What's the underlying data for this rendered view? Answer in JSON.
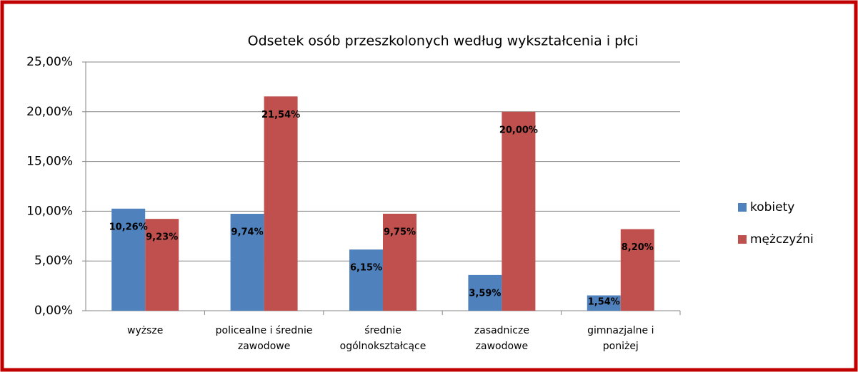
{
  "chart_data": {
    "type": "bar",
    "title": "Odsetek osób przeszkolonych według wykształcenia i płci",
    "categories": [
      "wyższe",
      "policealne i średnie\nzawodowe",
      "średnie\nogólnokształcące",
      "zasadnicze\nzawodowe",
      "gimnazjalne i\nponiżej"
    ],
    "series": [
      {
        "name": "kobiety",
        "color": "#4f81bd",
        "values": [
          10.26,
          9.74,
          6.15,
          3.59,
          1.54
        ],
        "value_labels": [
          "10,26%",
          "9,74%",
          "6,15%",
          "3,59%",
          "1,54%"
        ]
      },
      {
        "name": "mężczyźni",
        "color": "#c0504d",
        "values": [
          9.23,
          21.54,
          9.75,
          20.0,
          8.2
        ],
        "value_labels": [
          "9,23%",
          "21,54%",
          "9,75%",
          "20,00%",
          "8,20%"
        ]
      }
    ],
    "ylim": [
      0,
      25
    ],
    "yticks": [
      {
        "value": 0,
        "label": "0,00%"
      },
      {
        "value": 5,
        "label": "5,00%"
      },
      {
        "value": 10,
        "label": "10,00%"
      },
      {
        "value": 15,
        "label": "15,00%"
      },
      {
        "value": 20,
        "label": "20,00%"
      },
      {
        "value": 25,
        "label": "25,00%"
      }
    ],
    "grid": true,
    "legend": "right"
  }
}
